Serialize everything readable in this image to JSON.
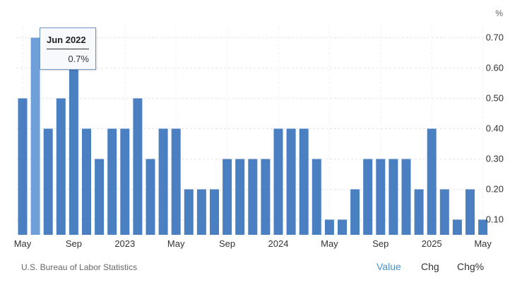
{
  "chart_data": {
    "type": "bar",
    "unit": "%",
    "x": [
      "2022-05",
      "2022-06",
      "2022-07",
      "2022-08",
      "2022-09",
      "2022-10",
      "2022-11",
      "2022-12",
      "2023-01",
      "2023-02",
      "2023-03",
      "2023-04",
      "2023-05",
      "2023-06",
      "2023-07",
      "2023-08",
      "2023-09",
      "2023-10",
      "2023-11",
      "2023-12",
      "2024-01",
      "2024-02",
      "2024-03",
      "2024-04",
      "2024-05",
      "2024-06",
      "2024-07",
      "2024-08",
      "2024-09",
      "2024-10",
      "2024-11",
      "2024-12",
      "2025-01",
      "2025-02",
      "2025-03",
      "2025-04",
      "2025-05"
    ],
    "values": [
      0.5,
      0.7,
      0.4,
      0.5,
      0.6,
      0.4,
      0.3,
      0.4,
      0.4,
      0.5,
      0.3,
      0.4,
      0.4,
      0.2,
      0.2,
      0.2,
      0.3,
      0.3,
      0.3,
      0.3,
      0.4,
      0.4,
      0.4,
      0.3,
      0.1,
      0.1,
      0.2,
      0.3,
      0.3,
      0.3,
      0.3,
      0.2,
      0.4,
      0.2,
      0.1,
      0.2,
      0.1
    ],
    "x_tick_labels": [
      "May",
      "Sep",
      "2023",
      "May",
      "Sep",
      "2024",
      "May",
      "Sep",
      "2025",
      "May"
    ],
    "y_ticks": [
      0.1,
      0.2,
      0.3,
      0.4,
      0.5,
      0.6,
      0.7
    ],
    "y_tick_labels": [
      "0.10",
      "0.20",
      "0.30",
      "0.40",
      "0.50",
      "0.60",
      "0.70"
    ],
    "ylim": [
      0.05,
      0.72
    ],
    "grid": true,
    "highlighted_index": 1,
    "bar_color": "#4a7fc1",
    "highlight_color": "#6f9fd8"
  },
  "tooltip": {
    "title": "Jun 2022",
    "value": "0.7%"
  },
  "source": "U.S. Bureau of Labor Statistics",
  "view_buttons": {
    "value": "Value",
    "chg": "Chg",
    "chg_pct": "Chg%"
  },
  "colors": {
    "active_button": "#4a8fc9",
    "text": "#333333"
  }
}
